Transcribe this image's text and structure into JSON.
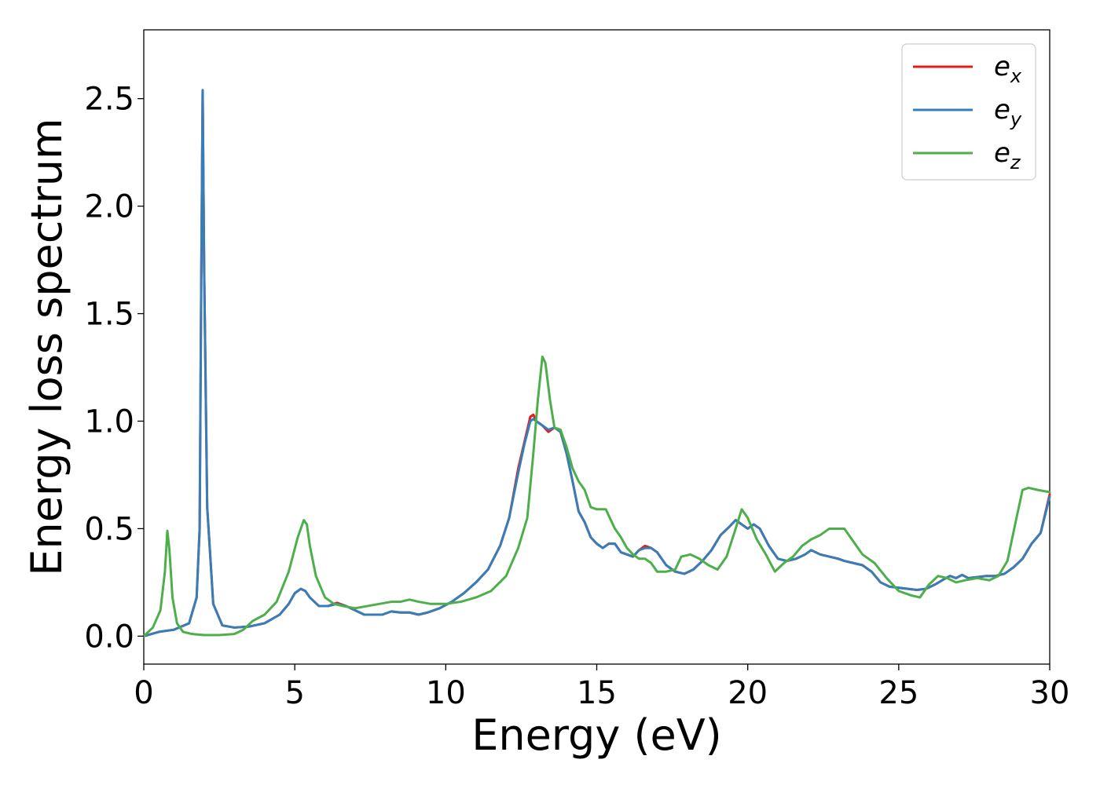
{
  "chart_data": {
    "type": "line",
    "title": "",
    "xlabel": "Energy (eV)",
    "ylabel": "Energy loss spectrum",
    "xlim": [
      0,
      30
    ],
    "ylim": [
      -0.13,
      2.82
    ],
    "xticks": [
      0,
      5,
      10,
      15,
      20,
      25,
      30
    ],
    "xtick_labels": [
      "0",
      "5",
      "10",
      "15",
      "20",
      "25",
      "30"
    ],
    "yticks": [
      0.0,
      0.5,
      1.0,
      1.5,
      2.0,
      2.5
    ],
    "ytick_labels": [
      "0.0",
      "0.5",
      "1.0",
      "1.5",
      "2.0",
      "2.5"
    ],
    "grid": false,
    "legend_position": "top-right",
    "series": [
      {
        "name": "e_x",
        "base": "e",
        "sub": "x",
        "color": "#e41a1c",
        "x": [
          0,
          0.5,
          1.0,
          1.5,
          1.75,
          1.85,
          1.9,
          1.95,
          2.0,
          2.1,
          2.3,
          2.6,
          3.0,
          3.5,
          4.0,
          4.5,
          4.8,
          5.0,
          5.2,
          5.35,
          5.5,
          5.8,
          6.1,
          6.4,
          6.7,
          7.0,
          7.3,
          7.6,
          7.9,
          8.2,
          8.5,
          8.8,
          9.1,
          9.4,
          9.8,
          10.2,
          10.6,
          11.0,
          11.4,
          11.8,
          12.1,
          12.4,
          12.6,
          12.8,
          12.9,
          13.0,
          13.2,
          13.4,
          13.6,
          13.8,
          14.0,
          14.2,
          14.4,
          14.6,
          14.8,
          15.0,
          15.2,
          15.4,
          15.6,
          15.8,
          16.0,
          16.2,
          16.4,
          16.6,
          16.8,
          17.0,
          17.3,
          17.6,
          17.9,
          18.2,
          18.5,
          18.8,
          19.1,
          19.4,
          19.6,
          19.8,
          20.0,
          20.2,
          20.4,
          20.7,
          21.0,
          21.3,
          21.6,
          21.9,
          22.1,
          22.4,
          22.7,
          23.0,
          23.2,
          23.5,
          23.8,
          24.1,
          24.4,
          24.7,
          25.0,
          25.3,
          25.6,
          25.9,
          26.2,
          26.5,
          26.7,
          26.9,
          27.1,
          27.3,
          27.6,
          27.9,
          28.2,
          28.5,
          28.8,
          29.1,
          29.4,
          29.7,
          30.0
        ],
        "y": [
          0.0,
          0.02,
          0.03,
          0.06,
          0.18,
          0.5,
          1.6,
          2.53,
          1.7,
          0.6,
          0.15,
          0.05,
          0.04,
          0.045,
          0.06,
          0.1,
          0.15,
          0.2,
          0.22,
          0.21,
          0.18,
          0.14,
          0.14,
          0.155,
          0.14,
          0.12,
          0.1,
          0.1,
          0.1,
          0.115,
          0.11,
          0.11,
          0.1,
          0.11,
          0.13,
          0.16,
          0.2,
          0.25,
          0.31,
          0.42,
          0.55,
          0.78,
          0.9,
          1.02,
          1.03,
          1.0,
          0.98,
          0.95,
          0.97,
          0.95,
          0.85,
          0.72,
          0.58,
          0.53,
          0.46,
          0.43,
          0.41,
          0.43,
          0.43,
          0.39,
          0.38,
          0.37,
          0.4,
          0.42,
          0.41,
          0.39,
          0.33,
          0.3,
          0.29,
          0.31,
          0.35,
          0.4,
          0.47,
          0.51,
          0.54,
          0.52,
          0.5,
          0.52,
          0.5,
          0.42,
          0.36,
          0.35,
          0.36,
          0.38,
          0.4,
          0.38,
          0.37,
          0.36,
          0.35,
          0.34,
          0.33,
          0.3,
          0.25,
          0.23,
          0.225,
          0.22,
          0.215,
          0.22,
          0.24,
          0.265,
          0.28,
          0.27,
          0.285,
          0.27,
          0.275,
          0.28,
          0.28,
          0.29,
          0.32,
          0.36,
          0.43,
          0.48,
          0.66
        ]
      },
      {
        "name": "e_y",
        "base": "e",
        "sub": "y",
        "color": "#377eb8",
        "x": [
          0,
          0.5,
          1.0,
          1.5,
          1.75,
          1.85,
          1.9,
          1.95,
          2.0,
          2.1,
          2.3,
          2.6,
          3.0,
          3.5,
          4.0,
          4.5,
          4.8,
          5.0,
          5.2,
          5.35,
          5.5,
          5.8,
          6.1,
          6.4,
          6.7,
          7.0,
          7.3,
          7.6,
          7.9,
          8.2,
          8.5,
          8.8,
          9.1,
          9.4,
          9.8,
          10.2,
          10.6,
          11.0,
          11.4,
          11.8,
          12.1,
          12.4,
          12.6,
          12.8,
          12.9,
          13.0,
          13.2,
          13.4,
          13.6,
          13.8,
          14.0,
          14.2,
          14.4,
          14.6,
          14.8,
          15.0,
          15.2,
          15.4,
          15.6,
          15.8,
          16.0,
          16.2,
          16.4,
          16.6,
          16.8,
          17.0,
          17.3,
          17.6,
          17.9,
          18.2,
          18.5,
          18.8,
          19.1,
          19.4,
          19.6,
          19.8,
          20.0,
          20.2,
          20.4,
          20.7,
          21.0,
          21.3,
          21.6,
          21.9,
          22.1,
          22.4,
          22.7,
          23.0,
          23.2,
          23.5,
          23.8,
          24.1,
          24.4,
          24.7,
          25.0,
          25.3,
          25.6,
          25.9,
          26.2,
          26.5,
          26.7,
          26.9,
          27.1,
          27.3,
          27.6,
          27.9,
          28.2,
          28.5,
          28.8,
          29.1,
          29.4,
          29.7,
          30.0
        ],
        "y": [
          0.0,
          0.02,
          0.03,
          0.06,
          0.18,
          0.5,
          1.6,
          2.54,
          1.7,
          0.6,
          0.15,
          0.05,
          0.04,
          0.045,
          0.06,
          0.1,
          0.15,
          0.2,
          0.22,
          0.21,
          0.18,
          0.14,
          0.14,
          0.15,
          0.14,
          0.12,
          0.1,
          0.1,
          0.1,
          0.115,
          0.11,
          0.11,
          0.1,
          0.11,
          0.13,
          0.16,
          0.2,
          0.25,
          0.31,
          0.42,
          0.55,
          0.76,
          0.89,
          1.0,
          1.01,
          1.0,
          0.98,
          0.96,
          0.97,
          0.95,
          0.85,
          0.72,
          0.58,
          0.53,
          0.46,
          0.43,
          0.41,
          0.43,
          0.43,
          0.39,
          0.38,
          0.37,
          0.4,
          0.41,
          0.41,
          0.39,
          0.33,
          0.3,
          0.29,
          0.31,
          0.35,
          0.4,
          0.47,
          0.51,
          0.54,
          0.52,
          0.5,
          0.52,
          0.5,
          0.42,
          0.36,
          0.35,
          0.36,
          0.38,
          0.4,
          0.38,
          0.37,
          0.36,
          0.35,
          0.34,
          0.33,
          0.3,
          0.25,
          0.23,
          0.225,
          0.22,
          0.215,
          0.22,
          0.24,
          0.265,
          0.28,
          0.27,
          0.285,
          0.27,
          0.275,
          0.28,
          0.28,
          0.29,
          0.32,
          0.36,
          0.43,
          0.48,
          0.65
        ]
      },
      {
        "name": "e_z",
        "base": "e",
        "sub": "z",
        "color": "#4daf4a",
        "x": [
          0,
          0.3,
          0.55,
          0.7,
          0.78,
          0.85,
          0.95,
          1.1,
          1.3,
          1.6,
          2.0,
          2.5,
          3.0,
          3.3,
          3.6,
          4.0,
          4.4,
          4.8,
          5.1,
          5.3,
          5.4,
          5.5,
          5.7,
          6.0,
          6.3,
          6.6,
          7.0,
          7.4,
          7.8,
          8.2,
          8.5,
          8.8,
          9.1,
          9.5,
          10.0,
          10.5,
          11.0,
          11.5,
          12.0,
          12.4,
          12.7,
          12.9,
          13.05,
          13.2,
          13.3,
          13.45,
          13.6,
          13.8,
          14.0,
          14.2,
          14.4,
          14.6,
          14.8,
          15.0,
          15.3,
          15.6,
          15.8,
          16.0,
          16.2,
          16.4,
          16.6,
          16.8,
          17.0,
          17.3,
          17.6,
          17.8,
          18.1,
          18.4,
          18.7,
          19.0,
          19.3,
          19.6,
          19.8,
          20.0,
          20.3,
          20.6,
          20.9,
          21.2,
          21.5,
          21.8,
          22.1,
          22.4,
          22.7,
          23.0,
          23.2,
          23.5,
          23.8,
          24.2,
          24.6,
          25.0,
          25.4,
          25.7,
          26.0,
          26.3,
          26.6,
          26.9,
          27.2,
          27.6,
          28.0,
          28.3,
          28.6,
          28.9,
          29.1,
          29.3,
          29.6,
          30.0
        ],
        "y": [
          0.0,
          0.04,
          0.12,
          0.3,
          0.49,
          0.4,
          0.18,
          0.06,
          0.02,
          0.01,
          0.005,
          0.005,
          0.01,
          0.03,
          0.07,
          0.1,
          0.16,
          0.3,
          0.46,
          0.54,
          0.52,
          0.42,
          0.28,
          0.18,
          0.15,
          0.14,
          0.13,
          0.14,
          0.15,
          0.16,
          0.16,
          0.17,
          0.16,
          0.15,
          0.15,
          0.16,
          0.18,
          0.21,
          0.28,
          0.41,
          0.55,
          0.85,
          1.1,
          1.3,
          1.27,
          1.1,
          0.97,
          0.96,
          0.88,
          0.78,
          0.72,
          0.68,
          0.6,
          0.59,
          0.59,
          0.5,
          0.46,
          0.41,
          0.38,
          0.36,
          0.36,
          0.34,
          0.3,
          0.3,
          0.31,
          0.37,
          0.38,
          0.36,
          0.33,
          0.31,
          0.37,
          0.5,
          0.59,
          0.55,
          0.45,
          0.38,
          0.3,
          0.34,
          0.37,
          0.42,
          0.45,
          0.47,
          0.5,
          0.5,
          0.5,
          0.44,
          0.38,
          0.34,
          0.27,
          0.21,
          0.19,
          0.18,
          0.24,
          0.28,
          0.27,
          0.25,
          0.26,
          0.27,
          0.26,
          0.28,
          0.35,
          0.55,
          0.68,
          0.69,
          0.68,
          0.67
        ]
      }
    ]
  }
}
